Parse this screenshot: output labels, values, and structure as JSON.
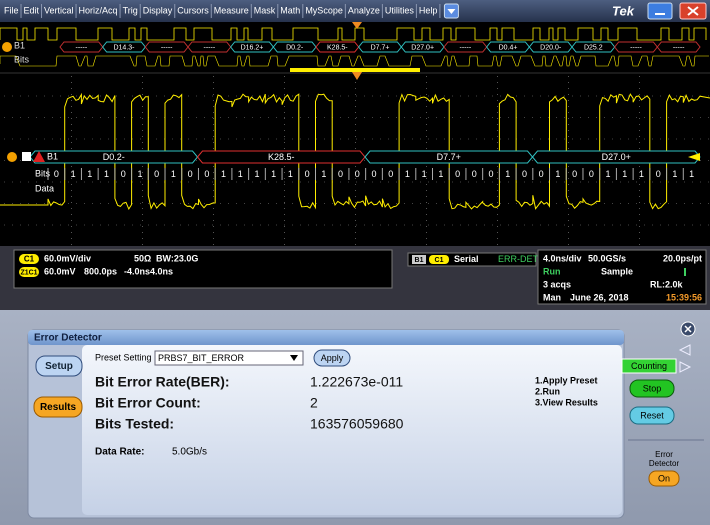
{
  "menu": [
    "File",
    "Edit",
    "Vertical",
    "Horiz/Acq",
    "Trig",
    "Display",
    "Cursors",
    "Measure",
    "Mask",
    "Math",
    "MyScope",
    "Analyze",
    "Utilities",
    "Help"
  ],
  "brand": "Tek",
  "overview": {
    "bus_label": "B1",
    "bits_label": "Bits",
    "segments": [
      "-----",
      "D14.3-",
      "-----",
      "-----",
      "D16.2+",
      "D0.2-",
      "K28.5-",
      "D7.7+",
      "D27.0+",
      "-----",
      "D0.4+",
      "D20.0-",
      "D25.2",
      "-----",
      "-----"
    ]
  },
  "bus": {
    "label": "B1",
    "segments": [
      "D0.2-",
      "K28.5-",
      "D7.7+",
      "D27.0+"
    ],
    "bits_label": "Bits",
    "bits": [
      0,
      1,
      1,
      1,
      0,
      1,
      0,
      1,
      0,
      0,
      1,
      1,
      1,
      1,
      1,
      0,
      1,
      0,
      0,
      0,
      0,
      1,
      1,
      1,
      0,
      0,
      0,
      1,
      0,
      0,
      1,
      0,
      0,
      1,
      1,
      1,
      0,
      1,
      1
    ],
    "data_label": "Data"
  },
  "status": {
    "channel": {
      "name": "C1",
      "scale": "60.0mV/div",
      "termination": "50Ω",
      "bandwidth": "BW:23.0G"
    },
    "zoom": {
      "name": "Z1C1",
      "scale": "60.0mV",
      "time": "800.0ps",
      "position": "-4.0ns",
      "offset": "4.0ns"
    },
    "bus": {
      "name": "B1",
      "source": "C1",
      "type": "Serial",
      "mode": "ERR-DET"
    },
    "acq": {
      "horizontal": "4.0ns/div",
      "sample_rate": "50.0GS/s",
      "resolution": "20.0ps/pt",
      "state": "Run",
      "mode": "Sample",
      "acqs": "3 acqs",
      "record_length": "RL:2.0k",
      "trigger": "Man",
      "date": "June 26, 2018",
      "time": "15:39:56"
    }
  },
  "error_detector": {
    "title": "Error Detector",
    "setup": "Setup",
    "results": "Results",
    "preset_label": "Preset Setting",
    "preset_value": "PRBS7_BIT_ERROR",
    "apply": "Apply",
    "rows": [
      {
        "label": "Bit Error Rate(BER):",
        "value": "1.222673e-011"
      },
      {
        "label": "Bit Error Count:",
        "value": "2"
      },
      {
        "label": "Bits Tested:",
        "value": "163576059680"
      }
    ],
    "data_rate_label": "Data Rate:",
    "data_rate_value": "5.0Gb/s",
    "steps": [
      "1.Apply Preset",
      "2.Run",
      "3.View Results"
    ],
    "counting": "Counting",
    "stop": "Stop",
    "reset": "Reset",
    "side_title": "Error",
    "side_subtitle": "Detector",
    "on": "On"
  }
}
